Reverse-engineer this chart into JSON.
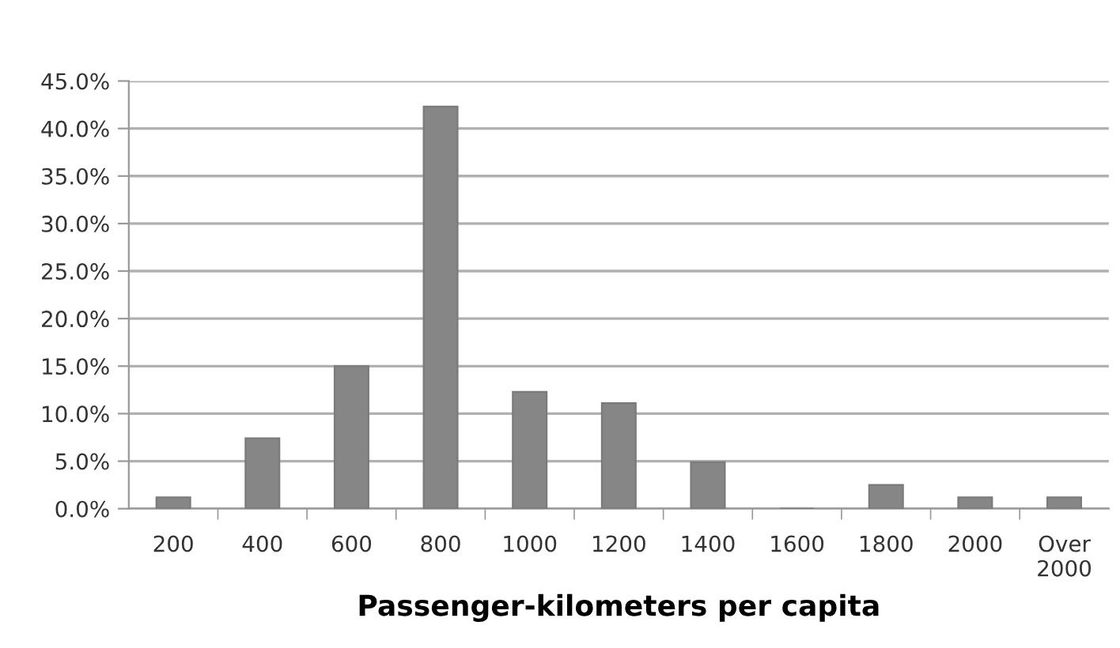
{
  "chart_data": {
    "type": "bar",
    "xlabel": "Passenger-kilometers per capita",
    "categories": [
      "200",
      "400",
      "600",
      "800",
      "1000",
      "1200",
      "1400",
      "1600",
      "1800",
      "2000",
      "Over\n2000"
    ],
    "values": [
      1.2,
      7.4,
      15.0,
      42.3,
      12.3,
      11.1,
      4.9,
      0,
      2.5,
      1.2,
      1.2
    ],
    "color": "#868686",
    "ylim": [
      0,
      45
    ],
    "yticks": [
      {
        "value": 0,
        "label": "0.0%"
      },
      {
        "value": 5,
        "label": "5.0%"
      },
      {
        "value": 10,
        "label": "10.0%"
      },
      {
        "value": 15,
        "label": "15.0%"
      },
      {
        "value": 20,
        "label": "20.0%"
      },
      {
        "value": 25,
        "label": "25.0%"
      },
      {
        "value": 30,
        "label": "30.0%"
      },
      {
        "value": 35,
        "label": "35.0%"
      },
      {
        "value": 40,
        "label": "40.0%"
      },
      {
        "value": 45,
        "label": "45.0%"
      }
    ],
    "grid": "y",
    "legend": false
  }
}
